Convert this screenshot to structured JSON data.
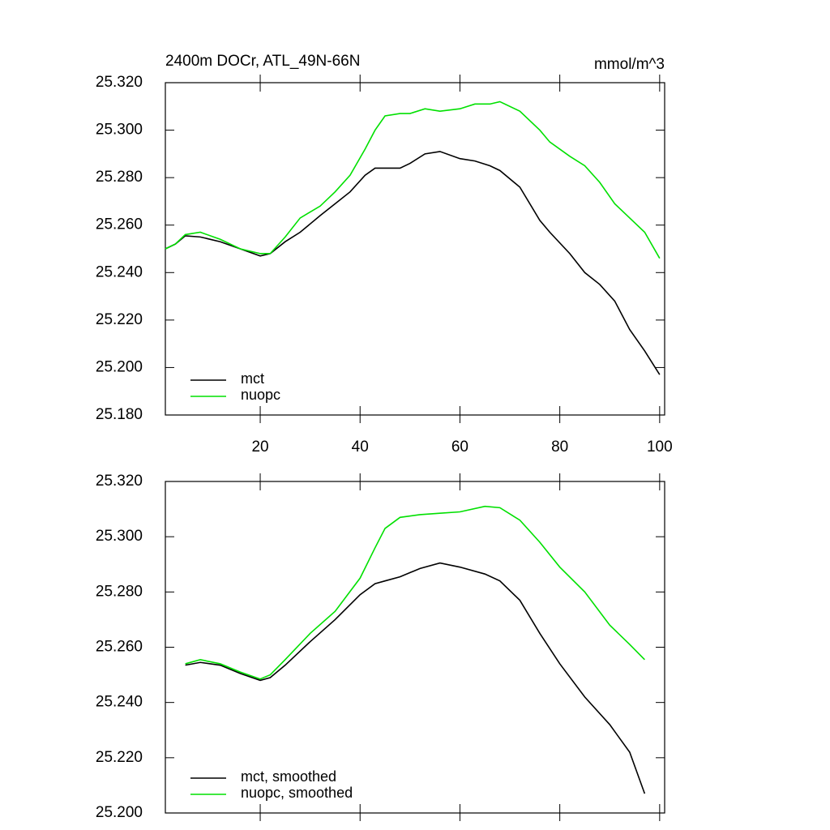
{
  "chart_data": [
    {
      "type": "line",
      "title": "2400m DOCr, ATL_49N-66N",
      "subtitle": "mmol/m^3",
      "xlim": [
        1,
        101
      ],
      "xticks": [
        20,
        40,
        60,
        80,
        100
      ],
      "ylim": [
        25.18,
        25.32
      ],
      "yticks": [
        {
          "value": 25.18,
          "label": "25.180"
        },
        {
          "value": 25.2,
          "label": "25.200"
        },
        {
          "value": 25.22,
          "label": "25.220"
        },
        {
          "value": 25.24,
          "label": "25.240"
        },
        {
          "value": 25.26,
          "label": "25.260"
        },
        {
          "value": 25.28,
          "label": "25.280"
        },
        {
          "value": 25.3,
          "label": "25.300"
        },
        {
          "value": 25.32,
          "label": "25.320"
        }
      ],
      "x": [
        1,
        3,
        5,
        8,
        12,
        16,
        20,
        22,
        25,
        28,
        32,
        35,
        38,
        41,
        43,
        45,
        48,
        50,
        53,
        56,
        60,
        63,
        66,
        68,
        72,
        76,
        78,
        82,
        85,
        88,
        91,
        94,
        97,
        100
      ],
      "series": [
        {
          "name": "mct",
          "color": "#000000",
          "values": [
            25.25,
            25.252,
            25.2555,
            25.255,
            25.253,
            25.25,
            25.247,
            25.248,
            25.253,
            25.257,
            25.264,
            25.269,
            25.274,
            25.281,
            25.284,
            25.284,
            25.284,
            25.286,
            25.29,
            25.291,
            25.288,
            25.287,
            25.285,
            25.283,
            25.276,
            25.262,
            25.257,
            25.248,
            25.24,
            25.235,
            25.228,
            25.216,
            25.207,
            25.197
          ]
        },
        {
          "name": "nuopc",
          "color": "#00e000",
          "values": [
            25.25,
            25.252,
            25.256,
            25.257,
            25.254,
            25.25,
            25.248,
            25.248,
            25.255,
            25.263,
            25.268,
            25.274,
            25.281,
            25.292,
            25.3,
            25.306,
            25.307,
            25.307,
            25.309,
            25.308,
            25.309,
            25.311,
            25.311,
            25.312,
            25.308,
            25.3,
            25.295,
            25.289,
            25.285,
            25.278,
            25.269,
            25.263,
            25.257,
            25.246
          ]
        }
      ]
    },
    {
      "type": "line",
      "xlim": [
        1,
        101
      ],
      "xticks": [
        20,
        40,
        60,
        80,
        100
      ],
      "ylim": [
        25.2,
        25.32
      ],
      "yticks": [
        {
          "value": 25.2,
          "label": "25.200"
        },
        {
          "value": 25.22,
          "label": "25.220"
        },
        {
          "value": 25.24,
          "label": "25.240"
        },
        {
          "value": 25.26,
          "label": "25.260"
        },
        {
          "value": 25.28,
          "label": "25.280"
        },
        {
          "value": 25.3,
          "label": "25.300"
        },
        {
          "value": 25.32,
          "label": "25.320"
        }
      ],
      "x": [
        5,
        8,
        12,
        16,
        20,
        22,
        25,
        30,
        35,
        40,
        43,
        45,
        48,
        52,
        56,
        60,
        65,
        68,
        72,
        76,
        80,
        85,
        90,
        94,
        97
      ],
      "series": [
        {
          "name": "mct, smoothed",
          "color": "#000000",
          "values": [
            25.2535,
            25.2545,
            25.2535,
            25.2505,
            25.248,
            25.249,
            25.2535,
            25.262,
            25.27,
            25.279,
            25.283,
            25.284,
            25.2855,
            25.2885,
            25.2905,
            25.289,
            25.2865,
            25.284,
            25.277,
            25.265,
            25.254,
            25.242,
            25.232,
            25.222,
            25.207
          ]
        },
        {
          "name": "nuopc, smoothed",
          "color": "#00e000",
          "values": [
            25.254,
            25.2555,
            25.254,
            25.251,
            25.2485,
            25.25,
            25.2555,
            25.265,
            25.273,
            25.285,
            25.296,
            25.303,
            25.307,
            25.308,
            25.3085,
            25.309,
            25.311,
            25.3105,
            25.306,
            25.298,
            25.289,
            25.28,
            25.268,
            25.261,
            25.2555
          ]
        }
      ]
    }
  ]
}
